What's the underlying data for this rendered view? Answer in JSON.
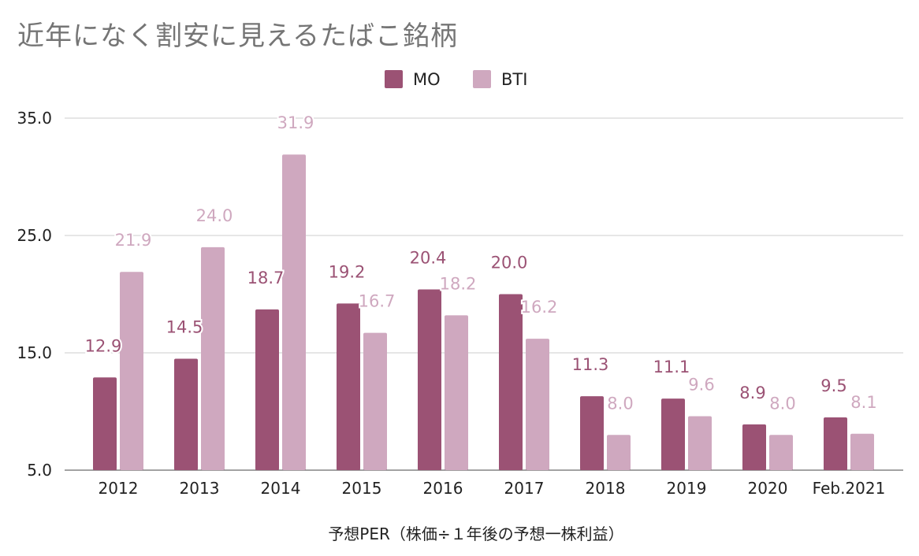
{
  "chart_data": {
    "type": "bar",
    "title": "近年になく割安に見えるたばこ銘柄",
    "xlabel": "予想PER（株価÷１年後の予想一株利益）",
    "ylabel": "",
    "categories": [
      "2012",
      "2013",
      "2014",
      "2015",
      "2016",
      "2017",
      "2018",
      "2019",
      "2020",
      "Feb.2021"
    ],
    "series": [
      {
        "name": "MO",
        "color": "#9b5274",
        "values": [
          12.9,
          14.5,
          18.7,
          19.2,
          20.4,
          20.0,
          11.3,
          11.1,
          8.9,
          9.5
        ],
        "labels": [
          "12.9",
          "14.5",
          "18.7",
          "19.2",
          "20.4",
          "20.0",
          "11.3",
          "11.1",
          "8.9",
          "9.5"
        ]
      },
      {
        "name": "BTI",
        "color": "#cfa8bf",
        "values": [
          21.9,
          24.0,
          31.9,
          16.7,
          18.2,
          16.2,
          8.0,
          9.6,
          8.0,
          8.1
        ],
        "labels": [
          "21.9",
          "24.0",
          "31.9",
          "16.7",
          "18.2",
          "16.2",
          "8.0",
          "9.6",
          "8.0",
          "8.1"
        ]
      }
    ],
    "ylim": [
      5,
      35
    ],
    "yticks": [
      "5.0",
      "15.0",
      "25.0",
      "35.0"
    ],
    "grid": true,
    "legend_position": "top-center"
  }
}
